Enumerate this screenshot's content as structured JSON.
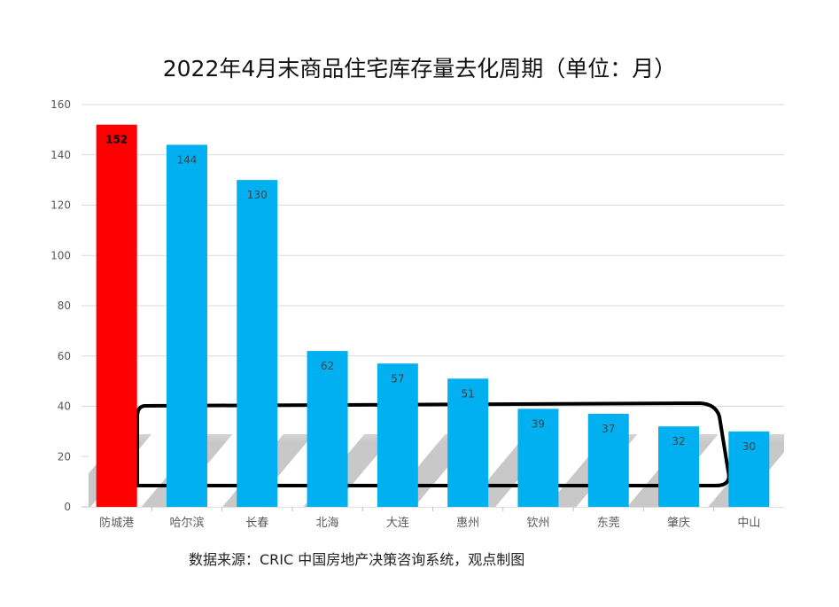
{
  "chart_data": {
    "type": "bar",
    "title": "2022年4月末商品住宅库存量去化周期（单位：月）",
    "categories": [
      "防城港",
      "哈尔滨",
      "长春",
      "北海",
      "大连",
      "惠州",
      "钦州",
      "东莞",
      "肇庆",
      "中山"
    ],
    "values": [
      152,
      144,
      130,
      62,
      57,
      51,
      39,
      37,
      32,
      30
    ],
    "ylim": [
      0,
      160
    ],
    "yticks": [
      0,
      20,
      40,
      60,
      80,
      100,
      120,
      140,
      160
    ],
    "xlabel": "",
    "ylabel": "",
    "grid": true,
    "legend": "none",
    "highlight_index": 0,
    "colors": {
      "highlight": "#ff0000",
      "bar": "#00b0f0",
      "label": "#404040",
      "highlight_label": "#000000"
    }
  },
  "source": "数据来源：CRIC 中国房地产决策咨询系统，观点制图"
}
